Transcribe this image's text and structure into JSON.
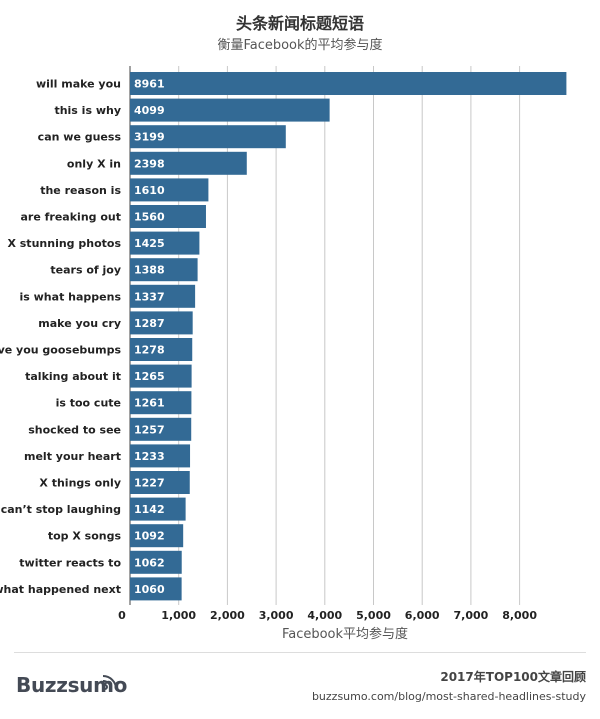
{
  "header": {
    "title": "头条新闻标题短语",
    "subtitle": "衡量Facebook的平均参与度"
  },
  "chart_data": {
    "type": "bar",
    "orientation": "horizontal",
    "title": "头条新闻标题短语",
    "subtitle": "衡量Facebook的平均参与度",
    "xlabel": "Facebook平均参与度",
    "ylabel": "",
    "xlim": [
      0,
      9000
    ],
    "xticks": [
      0,
      1000,
      2000,
      3000,
      4000,
      5000,
      6000,
      7000,
      8000
    ],
    "xtick_labels": [
      "0",
      "1,000",
      "2,000",
      "3,000",
      "4,000",
      "5,000",
      "6,000",
      "7,000",
      "8,000"
    ],
    "grid": true,
    "bar_color": "#336a95",
    "categories": [
      "will make you",
      "this is why",
      "can we guess",
      "only X in",
      "the reason is",
      "are freaking out",
      "X stunning photos",
      "tears of joy",
      "is what happens",
      "make you cry",
      "give you goosebumps",
      "talking about it",
      "is too cute",
      "shocked to see",
      "melt your heart",
      "X things only",
      "can’t stop laughing",
      "top X songs",
      "twitter reacts to",
      "what happened next"
    ],
    "values": [
      8961,
      4099,
      3199,
      2398,
      1610,
      1560,
      1425,
      1388,
      1337,
      1287,
      1278,
      1265,
      1261,
      1257,
      1233,
      1227,
      1142,
      1092,
      1062,
      1060
    ]
  },
  "footer": {
    "brand": "Buzzsumo",
    "icon": "signal-icon",
    "report_title": "2017年TOP100文章回顾",
    "url": "buzzsumo.com/blog/most-shared-headlines-study"
  }
}
